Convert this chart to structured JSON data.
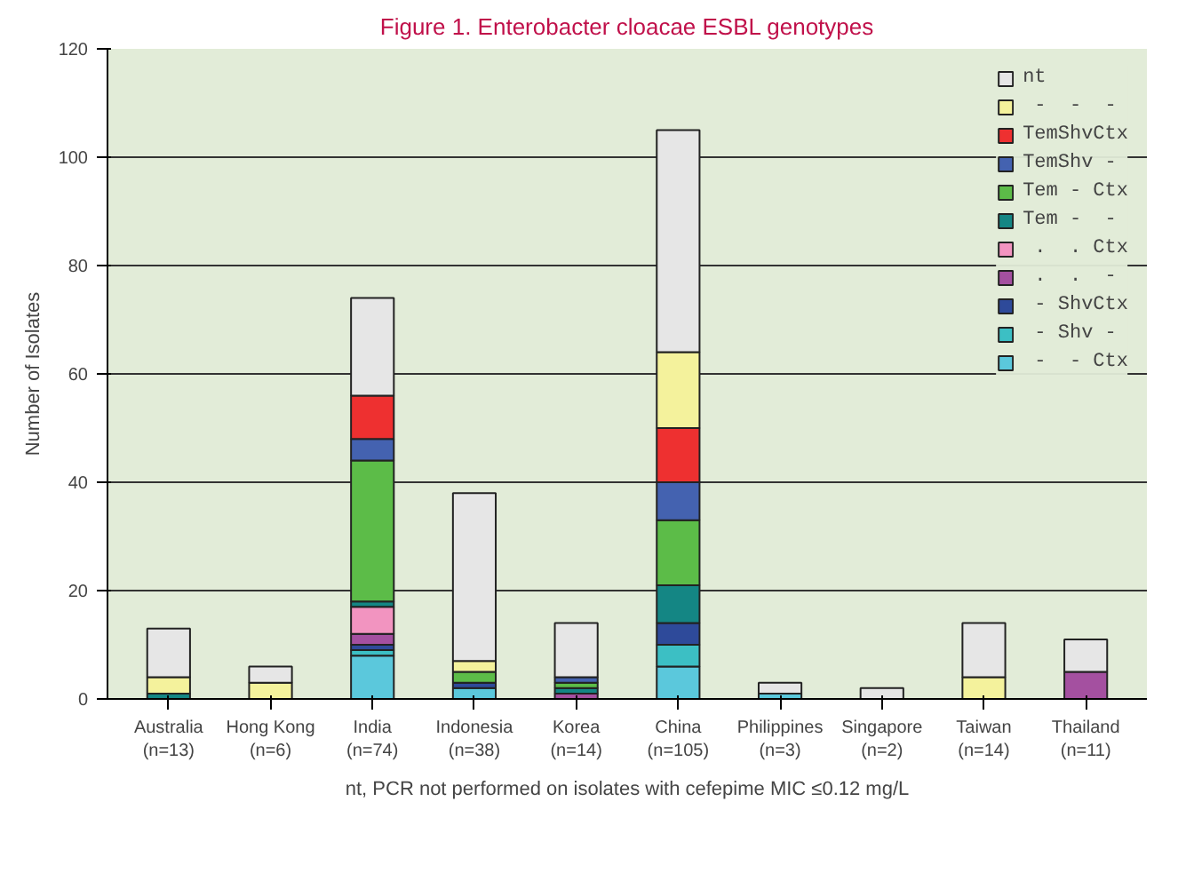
{
  "chart_data": {
    "type": "bar",
    "stacked": true,
    "title": "Figure 1. Enterobacter cloacae ESBL genotypes",
    "ylabel": "Number of Isolates",
    "categories": [
      "Australia\n(n=13)",
      "Hong Kong\n(n=6)",
      "India\n(n=74)",
      "Indonesia\n(n=38)",
      "Korea\n(n=14)",
      "China\n(n=105)",
      "Philippines\n(n=3)",
      "Singapore\n(n=2)",
      "Taiwan\n(n=14)",
      "Thailand\n(n=11)"
    ],
    "series": [
      {
        "name": " -  - Ctx",
        "color": "#5bc8dc",
        "values": [
          null,
          null,
          8,
          2,
          null,
          6,
          1,
          null,
          null,
          null
        ]
      },
      {
        "name": " - Shv -",
        "color": "#3cbfc4",
        "values": [
          null,
          null,
          1,
          null,
          null,
          4,
          null,
          null,
          null,
          null
        ]
      },
      {
        "name": " - ShvCtx",
        "color": "#2e4a9a",
        "values": [
          null,
          null,
          1,
          1,
          null,
          4,
          null,
          null,
          null,
          null
        ]
      },
      {
        "name": " .  .  -",
        "color": "#a450a0",
        "values": [
          null,
          null,
          2,
          null,
          1,
          null,
          null,
          null,
          null,
          5
        ]
      },
      {
        "name": " .  . Ctx",
        "color": "#f294c0",
        "values": [
          null,
          null,
          5,
          null,
          null,
          null,
          null,
          null,
          null,
          null
        ]
      },
      {
        "name": "Tem -  -",
        "color": "#148684",
        "values": [
          1,
          null,
          1,
          null,
          1,
          7,
          null,
          null,
          null,
          null
        ]
      },
      {
        "name": "Tem - Ctx",
        "color": "#5cbc48",
        "values": [
          null,
          null,
          26,
          2,
          1,
          12,
          null,
          null,
          null,
          null
        ]
      },
      {
        "name": "TemShv -",
        "color": "#4462b0",
        "values": [
          null,
          null,
          4,
          null,
          1,
          7,
          null,
          null,
          null,
          null
        ]
      },
      {
        "name": "TemShvCtx",
        "color": "#ee3030",
        "values": [
          null,
          null,
          8,
          null,
          null,
          10,
          null,
          null,
          null,
          null
        ]
      },
      {
        "name": " -  -  -",
        "color": "#f4f29c",
        "values": [
          3,
          3,
          null,
          2,
          null,
          14,
          null,
          null,
          4,
          null
        ]
      },
      {
        "name": "nt",
        "color": "#e6e6e6",
        "values": [
          9,
          3,
          18,
          31,
          10,
          41,
          2,
          2,
          10,
          6
        ]
      }
    ],
    "ylim": [
      0,
      120
    ],
    "yticks": [
      0,
      20,
      40,
      60,
      80,
      100,
      120
    ],
    "grid": "y",
    "legend": "top right",
    "annotations": [
      "nt, PCR not performed on isolates with cefepime MIC ≤0.12 mg/L"
    ]
  }
}
